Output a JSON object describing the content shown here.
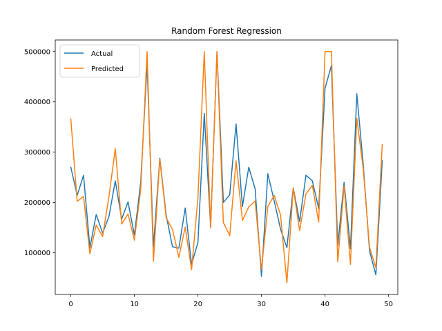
{
  "chart_data": {
    "type": "line",
    "title": "Random Forest Regression",
    "xlabel": "",
    "ylabel": "",
    "xlim": [
      -2.45,
      51.45
    ],
    "ylim": [
      17000,
      523000
    ],
    "xticks": [
      0,
      10,
      20,
      30,
      40,
      50
    ],
    "yticks": [
      100000,
      200000,
      300000,
      400000,
      500000
    ],
    "legend_position": "top-left",
    "grid": false,
    "x": [
      0,
      1,
      2,
      3,
      4,
      5,
      6,
      7,
      8,
      9,
      10,
      11,
      12,
      13,
      14,
      15,
      16,
      17,
      18,
      19,
      20,
      21,
      22,
      23,
      24,
      25,
      26,
      27,
      28,
      29,
      30,
      31,
      32,
      33,
      34,
      35,
      36,
      37,
      38,
      39,
      40,
      41,
      42,
      43,
      44,
      45,
      46,
      47,
      48,
      49
    ],
    "series": [
      {
        "name": "Actual",
        "color": "#1f77b4",
        "values": [
          270000,
          214000,
          254000,
          110000,
          176000,
          139000,
          172000,
          243000,
          167000,
          201000,
          135000,
          240000,
          476000,
          112000,
          288000,
          175000,
          112000,
          109000,
          189000,
          77000,
          120000,
          377000,
          152000,
          500000,
          200000,
          215000,
          356000,
          192000,
          270000,
          227000,
          53000,
          257000,
          203000,
          147000,
          110000,
          229000,
          162000,
          254000,
          243000,
          188000,
          427000,
          472000,
          115000,
          240000,
          108000,
          416000,
          277000,
          104000,
          56000,
          283000
        ]
      },
      {
        "name": "Predicted",
        "color": "#ff7f0e",
        "values": [
          366000,
          202000,
          212000,
          98000,
          155000,
          132000,
          212000,
          307000,
          157000,
          177000,
          125000,
          226000,
          500000,
          83000,
          286000,
          170000,
          146000,
          91000,
          151000,
          66000,
          209000,
          500000,
          149000,
          500000,
          160000,
          134000,
          283000,
          164000,
          191000,
          203000,
          66000,
          192000,
          214000,
          175000,
          40000,
          229000,
          144000,
          217000,
          234000,
          161000,
          500000,
          500000,
          82000,
          233000,
          77000,
          367000,
          268000,
          111000,
          70000,
          315000
        ]
      }
    ]
  }
}
